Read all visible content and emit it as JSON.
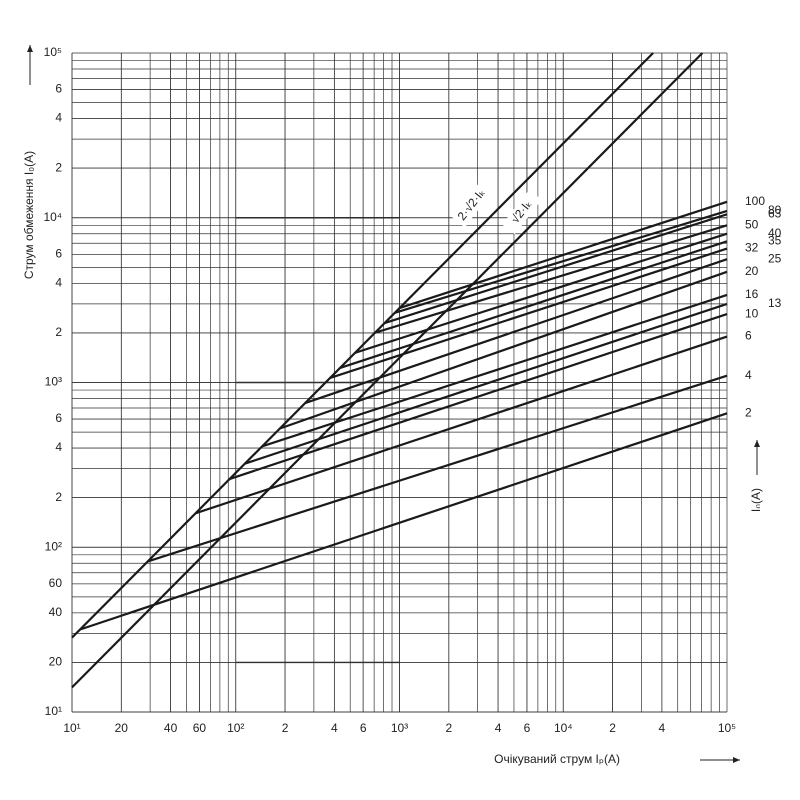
{
  "chart_data": {
    "type": "line",
    "x_label": "Очікуваний струм   Iₚ(A)",
    "y_label": "Струм обмеження   I₀(A)",
    "legend_title": "Iₙ(A)",
    "log_x": true,
    "log_y": true,
    "grid": true,
    "color": "#1a1a1a",
    "xlim": [
      10,
      100000
    ],
    "ylim": [
      10,
      100000
    ],
    "xticks": [
      {
        "value": 10,
        "label": "10¹"
      },
      20,
      40,
      60,
      {
        "value": 100,
        "label": "10²"
      },
      {
        "value": 200,
        "label": "2"
      },
      {
        "value": 400,
        "label": "4"
      },
      {
        "value": 600,
        "label": "6"
      },
      {
        "value": 1000,
        "label": "10³"
      },
      {
        "value": 2000,
        "label": "2"
      },
      {
        "value": 4000,
        "label": "4"
      },
      {
        "value": 6000,
        "label": "6"
      },
      {
        "value": 10000,
        "label": "10⁴"
      },
      {
        "value": 20000,
        "label": "2"
      },
      {
        "value": 40000,
        "label": "4"
      },
      {
        "value": 100000,
        "label": "10⁵"
      }
    ],
    "yticks": [
      {
        "value": 10,
        "label": "10¹"
      },
      20,
      40,
      60,
      {
        "value": 100,
        "label": "10²"
      },
      {
        "value": 200,
        "label": "2"
      },
      {
        "value": 400,
        "label": "4"
      },
      {
        "value": 600,
        "label": "6"
      },
      {
        "value": 1000,
        "label": "10³"
      },
      {
        "value": 2000,
        "label": "2"
      },
      {
        "value": 4000,
        "label": "4"
      },
      {
        "value": 6000,
        "label": "6"
      },
      {
        "value": 10000,
        "label": "10⁴"
      },
      {
        "value": 20000,
        "label": "2"
      },
      {
        "value": 40000,
        "label": "4"
      },
      {
        "value": 60000,
        "label": "6"
      },
      {
        "value": 100000,
        "label": "10⁵"
      }
    ],
    "reference_lines": [
      {
        "name": "2·√2·Iₖ",
        "x": [
          10,
          35355
        ],
        "values": [
          28.3,
          100000
        ]
      },
      {
        "name": "√2·Iₖ",
        "x": [
          10,
          70711
        ],
        "values": [
          14.1,
          100000
        ]
      }
    ],
    "series": [
      {
        "name": "100",
        "x": [
          1000,
          100000
        ],
        "values": [
          2830,
          12500
        ]
      },
      {
        "name": "80",
        "x": [
          936,
          100000
        ],
        "values": [
          2650,
          11000
        ]
      },
      {
        "name": "63",
        "x": [
          815,
          100000
        ],
        "values": [
          2300,
          10500
        ]
      },
      {
        "name": "50",
        "x": [
          709,
          100000
        ],
        "values": [
          2006,
          9000
        ]
      },
      {
        "name": "40",
        "x": [
          535,
          100000
        ],
        "values": [
          1514,
          8000
        ]
      },
      {
        "name": "35",
        "x": [
          434,
          100000
        ],
        "values": [
          1227,
          7200
        ]
      },
      {
        "name": "32",
        "x": [
          377,
          100000
        ],
        "values": [
          1066,
          6500
        ]
      },
      {
        "name": "25",
        "x": [
          265,
          100000
        ],
        "values": [
          750,
          5600
        ]
      },
      {
        "name": "20",
        "x": [
          186,
          100000
        ],
        "values": [
          526,
          4700
        ]
      },
      {
        "name": "16",
        "x": [
          145,
          100000
        ],
        "values": [
          410,
          3400
        ]
      },
      {
        "name": "13",
        "x": [
          114,
          100000
        ],
        "values": [
          322,
          3000
        ]
      },
      {
        "name": "10",
        "x": [
          92,
          100000
        ],
        "values": [
          260,
          2600
        ]
      },
      {
        "name": "6",
        "x": [
          57,
          100000
        ],
        "values": [
          161,
          1900
        ]
      },
      {
        "name": "4",
        "x": [
          29,
          100000
        ],
        "values": [
          82,
          1100
        ]
      },
      {
        "name": "2",
        "x": [
          11.2,
          100000
        ],
        "values": [
          31.7,
          650
        ]
      }
    ]
  }
}
